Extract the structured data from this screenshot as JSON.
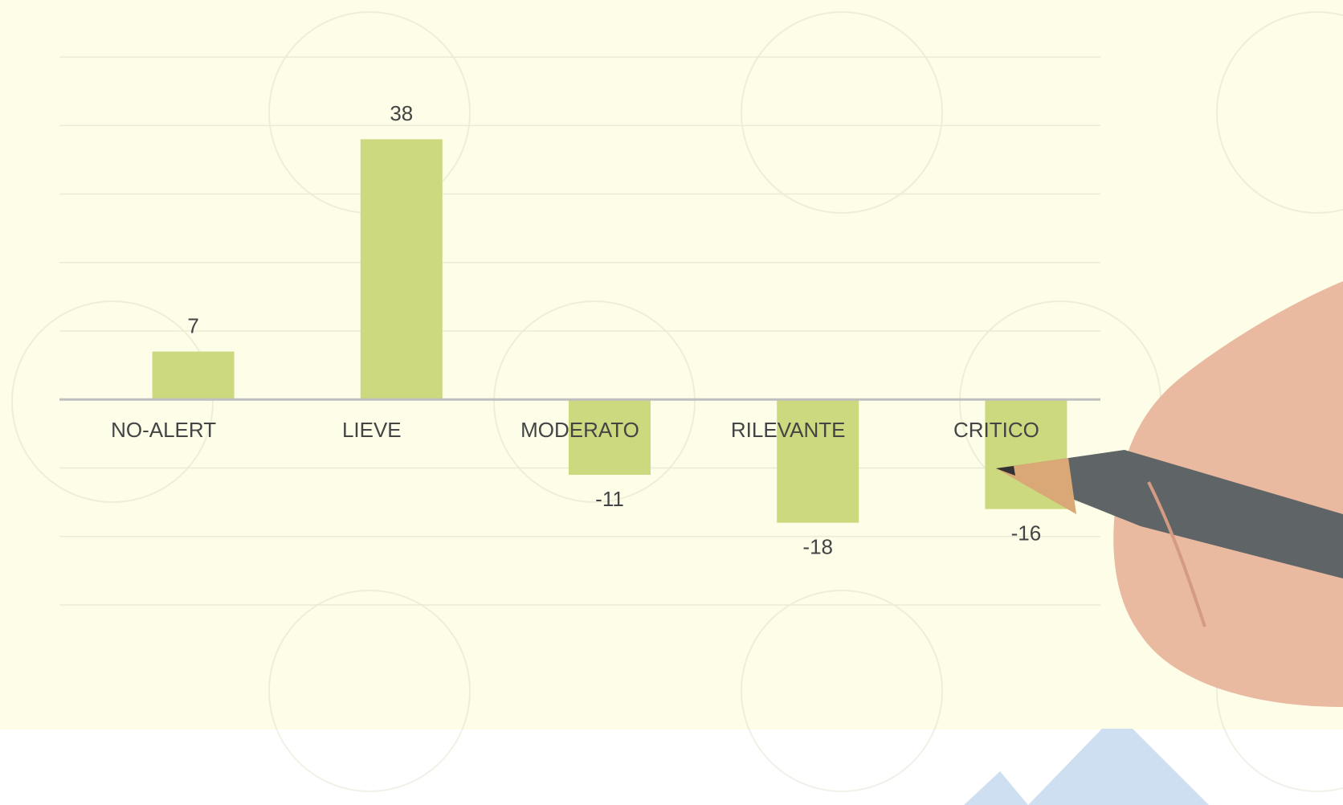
{
  "chart_data": {
    "type": "bar",
    "categories": [
      "NO-ALERT",
      "LIEVE",
      "MODERATO",
      "RILEVANTE",
      "CRITICO"
    ],
    "values": [
      7,
      38,
      -11,
      -18,
      -16
    ],
    "color": "#cdd97f",
    "ylim": [
      -30,
      50
    ],
    "yticks": [
      -30,
      -20,
      -10,
      0,
      10,
      20,
      30,
      40,
      50
    ],
    "grid": true
  }
}
